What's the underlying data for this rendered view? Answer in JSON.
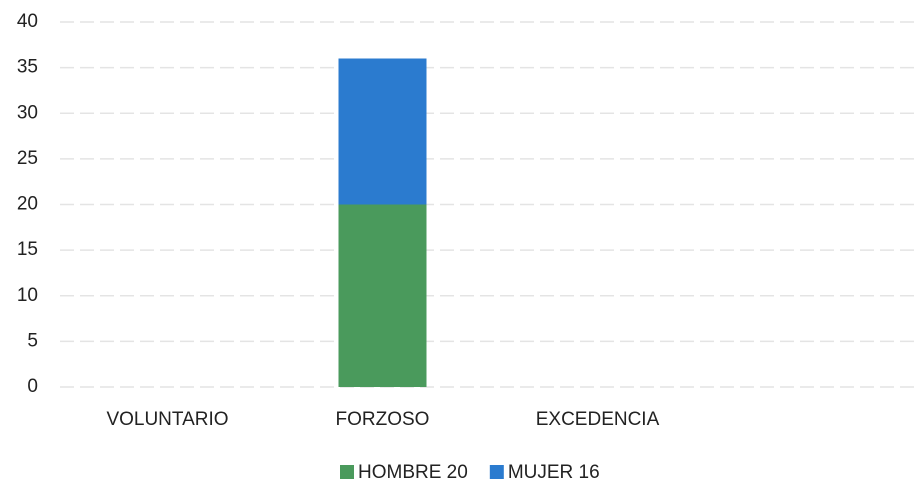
{
  "chart_data": {
    "type": "stacked_bar",
    "categories": [
      "VOLUNTARIO",
      "FORZOSO",
      "EXCEDENCIA",
      null
    ],
    "series": [
      {
        "name": "HOMBRE 20",
        "color": "#4a9a5c",
        "values": [
          null,
          20,
          null,
          null
        ]
      },
      {
        "name": "MUJER 16",
        "color": "#2b7bcf",
        "values": [
          null,
          16,
          null,
          null
        ]
      }
    ],
    "ylim": [
      0,
      40
    ],
    "yticks": [
      0,
      5,
      10,
      15,
      20,
      25,
      30,
      35,
      40
    ],
    "grid": true,
    "legend": "bottom"
  }
}
